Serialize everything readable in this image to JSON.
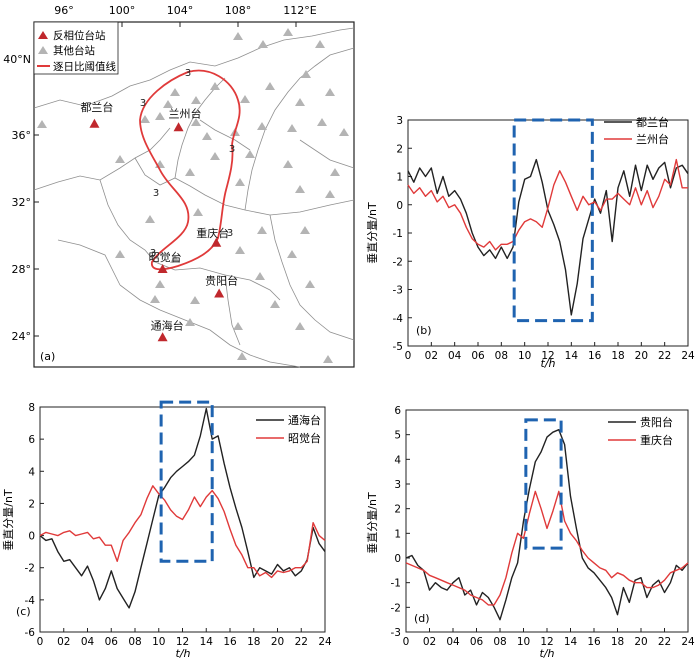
{
  "colors": {
    "black_series": "#222222",
    "red_series": "#e03a3a",
    "box": "#1f63b0",
    "triangle_red": "#c0282d",
    "triangle_gray": "#b4b4b4"
  },
  "map": {
    "label": "(a)",
    "lon_ticks": [
      "96°",
      "100°",
      "104°",
      "108°",
      "112°E"
    ],
    "lat_ticks": [
      "40°N",
      "36°",
      "32°",
      "28°",
      "24°"
    ],
    "legend": [
      {
        "marker": "red-triangle",
        "label": "反相位台站"
      },
      {
        "marker": "gray-triangle",
        "label": "其他台站"
      },
      {
        "marker": "red-line",
        "label": "逐日比阈值线"
      }
    ],
    "contour_labels": [
      "3",
      "3",
      "3",
      "3",
      "3",
      "3"
    ],
    "stations": [
      {
        "name": "都兰台",
        "lon": 98.1,
        "lat": 36.3
      },
      {
        "name": "兰州台",
        "lon": 103.9,
        "lat": 36.1
      },
      {
        "name": "重庆台",
        "lon": 106.5,
        "lat": 29.5
      },
      {
        "name": "昭觉台",
        "lon": 102.8,
        "lat": 28.0
      },
      {
        "name": "贵阳台",
        "lon": 106.7,
        "lat": 26.6
      },
      {
        "name": "通海台",
        "lon": 102.8,
        "lat": 24.1
      }
    ]
  },
  "chart_data": [
    {
      "type": "line",
      "label": "(b)",
      "ylabel": "垂直分量/nT",
      "xlabel": "t/h",
      "xlim": [
        0,
        24
      ],
      "ylim": [
        -5,
        3
      ],
      "xticks": [
        "0",
        "02",
        "04",
        "06",
        "08",
        "10",
        "12",
        "14",
        "16",
        "18",
        "20",
        "22",
        "24"
      ],
      "yticks": [
        "3",
        "2",
        "1",
        "0",
        "-1",
        "-2",
        "-3",
        "-4",
        "-5"
      ],
      "box": {
        "x": [
          9.1,
          15.8
        ],
        "y": [
          -4.1,
          3.0
        ]
      },
      "series": [
        {
          "name": "都兰台",
          "color": "black",
          "x": [
            0,
            0.5,
            1,
            1.5,
            2,
            2.5,
            3,
            3.5,
            4,
            4.5,
            5,
            5.5,
            6,
            6.5,
            7,
            7.5,
            8,
            8.5,
            9,
            9.5,
            10,
            10.5,
            11,
            11.5,
            12,
            12.5,
            13,
            13.5,
            14,
            14.5,
            15,
            15.5,
            16,
            16.5,
            17,
            17.5,
            18,
            18.5,
            19,
            19.5,
            20,
            20.5,
            21,
            21.5,
            22,
            22.5,
            23,
            23.5,
            24
          ],
          "y": [
            1.2,
            0.8,
            1.3,
            1.0,
            1.3,
            0.4,
            1.0,
            0.3,
            0.5,
            0.2,
            -0.3,
            -1.0,
            -1.5,
            -1.8,
            -1.6,
            -1.9,
            -1.5,
            -1.9,
            -1.5,
            0.1,
            0.9,
            1.0,
            1.6,
            0.8,
            -0.2,
            -0.7,
            -1.3,
            -2.3,
            -3.9,
            -2.8,
            -1.2,
            -0.5,
            0.2,
            -0.3,
            0.5,
            -1.3,
            0.6,
            1.2,
            0.3,
            1.4,
            0.5,
            1.4,
            0.9,
            1.3,
            1.5,
            0.6,
            1.3,
            1.4,
            1.1
          ]
        },
        {
          "name": "兰州台",
          "color": "red",
          "x": [
            0,
            0.5,
            1,
            1.5,
            2,
            2.5,
            3,
            3.5,
            4,
            4.5,
            5,
            5.5,
            6,
            6.5,
            7,
            7.5,
            8,
            8.5,
            9,
            9.5,
            10,
            10.5,
            11,
            11.5,
            12,
            12.5,
            13,
            13.5,
            14,
            14.5,
            15,
            15.5,
            16,
            16.5,
            17,
            17.5,
            18,
            18.5,
            19,
            19.5,
            20,
            20.5,
            21,
            21.5,
            22,
            22.5,
            23,
            23.5,
            24
          ],
          "y": [
            0.7,
            0.4,
            0.6,
            0.3,
            0.5,
            0.1,
            0.3,
            -0.1,
            0.0,
            -0.3,
            -0.8,
            -1.2,
            -1.4,
            -1.5,
            -1.3,
            -1.6,
            -1.4,
            -1.4,
            -1.3,
            -0.9,
            -0.6,
            -0.5,
            -0.6,
            -0.8,
            -0.1,
            0.7,
            1.2,
            0.8,
            0.3,
            -0.2,
            0.3,
            0.0,
            0.1,
            -0.2,
            0.2,
            0.2,
            0.4,
            0.2,
            0.0,
            0.6,
            0.0,
            0.5,
            -0.1,
            0.3,
            0.9,
            0.7,
            1.6,
            0.6,
            0.6
          ]
        }
      ]
    },
    {
      "type": "line",
      "label": "(c)",
      "ylabel": "垂直分量/nT",
      "xlabel": "t/h",
      "xlim": [
        0,
        24
      ],
      "ylim": [
        -6,
        8
      ],
      "xticks": [
        "0",
        "02",
        "04",
        "06",
        "08",
        "10",
        "12",
        "14",
        "16",
        "18",
        "20",
        "22",
        "24"
      ],
      "yticks": [
        "8",
        "6",
        "4",
        "2",
        "0",
        "-2",
        "-4",
        "-6"
      ],
      "box": {
        "x": [
          10.2,
          14.5
        ],
        "y": [
          -1.6,
          8.3
        ]
      },
      "series": [
        {
          "name": "通海台",
          "color": "black",
          "x": [
            0,
            0.5,
            1,
            1.5,
            2,
            2.5,
            3,
            3.5,
            4,
            4.5,
            5,
            5.5,
            6,
            6.5,
            7,
            7.5,
            8,
            8.5,
            9,
            9.5,
            10,
            10.5,
            11,
            11.5,
            12,
            12.5,
            13,
            13.5,
            14,
            14.5,
            15,
            15.5,
            16,
            16.5,
            17,
            17.5,
            18,
            18.5,
            19,
            19.5,
            20,
            20.5,
            21,
            21.5,
            22,
            22.5,
            23,
            23.5,
            24
          ],
          "y": [
            0.0,
            -0.3,
            -0.2,
            -1.0,
            -1.6,
            -1.5,
            -2.0,
            -2.5,
            -1.9,
            -2.8,
            -4.0,
            -3.3,
            -2.2,
            -3.3,
            -3.9,
            -4.5,
            -3.5,
            -2.0,
            -0.5,
            1.0,
            2.5,
            3.0,
            3.6,
            4.0,
            4.3,
            4.6,
            5.0,
            6.2,
            7.9,
            6.0,
            6.2,
            4.5,
            3.0,
            1.7,
            0.5,
            -1.0,
            -2.6,
            -2.0,
            -2.2,
            -2.4,
            -1.8,
            -2.2,
            -2.0,
            -2.5,
            -2.2,
            -1.5,
            0.5,
            -0.5,
            -1.0
          ]
        },
        {
          "name": "昭觉台",
          "color": "red",
          "x": [
            0,
            0.5,
            1,
            1.5,
            2,
            2.5,
            3,
            3.5,
            4,
            4.5,
            5,
            5.5,
            6,
            6.5,
            7,
            7.5,
            8,
            8.5,
            9,
            9.5,
            10,
            10.5,
            11,
            11.5,
            12,
            12.5,
            13,
            13.5,
            14,
            14.5,
            15,
            15.5,
            16,
            16.5,
            17,
            17.5,
            18,
            18.5,
            19,
            19.5,
            20,
            20.5,
            21,
            21.5,
            22,
            22.5,
            23,
            23.5,
            24
          ],
          "y": [
            0.0,
            0.2,
            0.1,
            0.0,
            0.2,
            0.3,
            0.0,
            0.1,
            0.2,
            -0.2,
            -0.1,
            -0.6,
            -0.6,
            -1.6,
            -0.3,
            0.2,
            0.8,
            1.3,
            2.3,
            3.1,
            2.6,
            2.2,
            1.6,
            1.2,
            1.0,
            1.6,
            2.4,
            1.8,
            2.4,
            2.8,
            2.3,
            1.5,
            0.4,
            -0.6,
            -1.2,
            -2.0,
            -2.0,
            -2.5,
            -2.3,
            -2.6,
            -2.2,
            -2.3,
            -2.2,
            -2.0,
            -2.0,
            -1.6,
            0.8,
            0.0,
            -0.3
          ]
        }
      ]
    },
    {
      "type": "line",
      "label": "(d)",
      "ylabel": "垂直分量/nT",
      "xlabel": "t/h",
      "xlim": [
        0,
        24
      ],
      "ylim": [
        -3,
        6
      ],
      "xticks": [
        "0",
        "02",
        "04",
        "06",
        "08",
        "10",
        "12",
        "14",
        "16",
        "18",
        "20",
        "22",
        "24"
      ],
      "yticks": [
        "6",
        "5",
        "4",
        "3",
        "2",
        "1",
        "0",
        "-1",
        "-2",
        "-3"
      ],
      "box": {
        "x": [
          10.2,
          13.2
        ],
        "y": [
          0.4,
          5.6
        ]
      },
      "series": [
        {
          "name": "贵阳台",
          "color": "black",
          "x": [
            0,
            0.5,
            1,
            1.5,
            2,
            2.5,
            3,
            3.5,
            4,
            4.5,
            5,
            5.5,
            6,
            6.5,
            7,
            7.5,
            8,
            8.5,
            9,
            9.5,
            10,
            10.5,
            11,
            11.5,
            12,
            12.5,
            13,
            13.5,
            14,
            14.5,
            15,
            15.5,
            16,
            16.5,
            17,
            17.5,
            18,
            18.5,
            19,
            19.5,
            20,
            20.5,
            21,
            21.5,
            22,
            22.5,
            23,
            23.5,
            24
          ],
          "y": [
            0.0,
            0.1,
            -0.3,
            -0.5,
            -1.3,
            -1.0,
            -1.2,
            -1.3,
            -1.0,
            -0.8,
            -1.5,
            -1.3,
            -1.9,
            -1.4,
            -1.6,
            -2.0,
            -2.5,
            -1.7,
            -0.8,
            -0.2,
            1.5,
            2.8,
            3.9,
            4.3,
            4.9,
            5.1,
            5.2,
            4.6,
            2.5,
            1.2,
            0.0,
            -0.4,
            -0.6,
            -0.9,
            -1.2,
            -1.6,
            -2.3,
            -1.2,
            -1.8,
            -0.9,
            -0.8,
            -1.6,
            -1.1,
            -0.9,
            -1.4,
            -1.0,
            -0.3,
            -0.5,
            -0.2
          ]
        },
        {
          "name": "重庆台",
          "color": "red",
          "x": [
            0,
            0.5,
            1,
            1.5,
            2,
            2.5,
            3,
            3.5,
            4,
            4.5,
            5,
            5.5,
            6,
            6.5,
            7,
            7.5,
            8,
            8.5,
            9,
            9.5,
            10,
            10.5,
            11,
            11.5,
            12,
            12.5,
            13,
            13.5,
            14,
            14.5,
            15,
            15.5,
            16,
            16.5,
            17,
            17.5,
            18,
            18.5,
            19,
            19.5,
            20,
            20.5,
            21,
            21.5,
            22,
            22.5,
            23,
            23.5,
            24
          ],
          "y": [
            -0.2,
            -0.3,
            -0.4,
            -0.5,
            -0.7,
            -0.8,
            -0.9,
            -1.0,
            -1.1,
            -1.2,
            -1.3,
            -1.5,
            -1.6,
            -1.7,
            -1.9,
            -1.9,
            -1.5,
            -0.8,
            0.2,
            1.0,
            0.8,
            1.8,
            2.7,
            2.0,
            1.2,
            1.9,
            2.7,
            1.5,
            1.0,
            0.7,
            0.3,
            0.0,
            -0.2,
            -0.4,
            -0.5,
            -0.8,
            -0.6,
            -0.7,
            -0.9,
            -1.0,
            -1.0,
            -1.2,
            -1.2,
            -1.1,
            -0.9,
            -0.6,
            -0.5,
            -0.4,
            -0.2
          ]
        }
      ]
    }
  ]
}
